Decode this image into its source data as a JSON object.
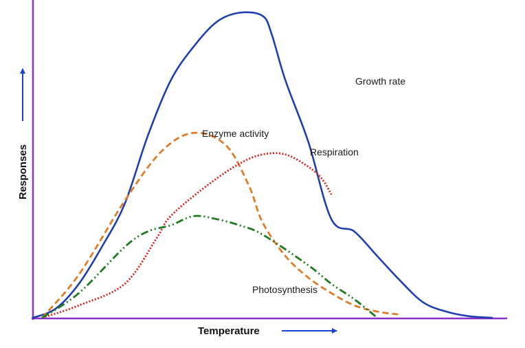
{
  "chart_data": {
    "type": "line",
    "title": "",
    "xlabel": "Temperature",
    "ylabel": "Responses",
    "xlim": [
      0,
      100
    ],
    "ylim": [
      0,
      100
    ],
    "grid": false,
    "legend": "none",
    "colors": {
      "axis": "#8b2fc9",
      "arrow": "#1c3fd4",
      "growth": "#1f3fb0",
      "enzyme": "#e07b28",
      "respiration": "#d62020",
      "photosynthesis": "#1e7a1e"
    },
    "series": [
      {
        "name": "Growth rate",
        "x": [
          0,
          5,
          10,
          15,
          20,
          25,
          30,
          35,
          40,
          45,
          50,
          52,
          55,
          60,
          65,
          70,
          75,
          80,
          85,
          90,
          95,
          100
        ],
        "y": [
          0,
          3,
          11,
          23,
          37,
          59,
          77,
          88,
          96,
          99,
          98,
          92,
          77,
          57,
          32,
          28,
          20,
          12,
          5,
          2,
          0.5,
          0
        ]
      },
      {
        "name": "Enzyme activity",
        "x": [
          2,
          10,
          20,
          28,
          35,
          42,
          47,
          50,
          55,
          60,
          65,
          70,
          75,
          80
        ],
        "y": [
          0,
          14,
          38,
          54,
          60,
          56,
          43,
          31,
          20,
          13,
          8,
          4,
          2,
          1
        ]
      },
      {
        "name": "Respiration",
        "x": [
          2,
          10,
          20,
          27,
          30,
          38,
          45,
          50,
          55,
          60,
          63,
          65
        ],
        "y": [
          0,
          4,
          11,
          26,
          33,
          43,
          50,
          53,
          53,
          49,
          45,
          40
        ]
      },
      {
        "name": "Photosynthesis",
        "x": [
          2,
          10,
          20,
          25,
          30,
          35,
          40,
          45,
          50,
          60,
          65,
          70,
          75
        ],
        "y": [
          0,
          8,
          23,
          28,
          30,
          33,
          32,
          30,
          27,
          17,
          11,
          6,
          0
        ]
      }
    ]
  }
}
